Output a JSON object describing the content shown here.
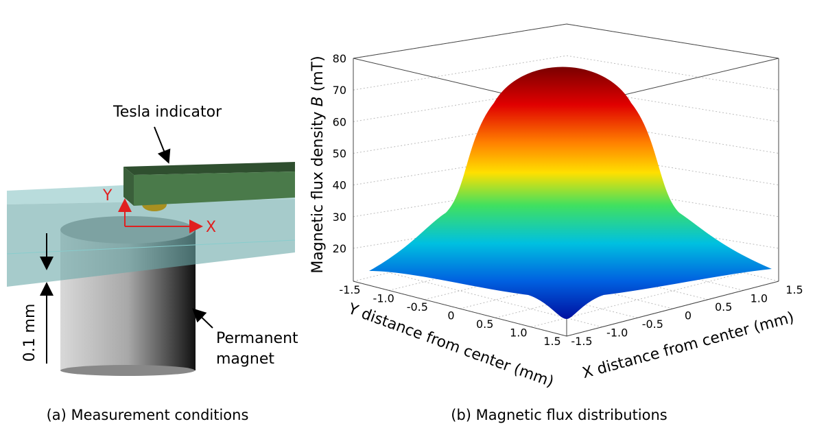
{
  "panel_a": {
    "labels": {
      "tesla_indicator": "Tesla indicator",
      "y_axis": "Y",
      "x_axis": "X",
      "permanent_magnet": [
        "Permanent",
        "magnet"
      ],
      "gap": "0.1 mm"
    },
    "caption": "(a) Measurement conditions"
  },
  "panel_b": {
    "z_title": {
      "text": "Magnetic flux density ",
      "symbol": "B",
      "unit": " (mT)"
    },
    "zticks": [
      20,
      30,
      40,
      50,
      60,
      70,
      80
    ],
    "yticks": [
      "-1.5",
      "-1.0",
      "-0.5",
      "0",
      "0.5",
      "1.0",
      "1.5"
    ],
    "xticks": [
      "-1.5",
      "-1.0",
      "-0.5",
      "0",
      "0.5",
      "1.0",
      "1.5"
    ],
    "y_title": "Y distance from center (mm)",
    "x_title": "X distance from center (mm)",
    "caption": "(b) Magnetic flux distributions"
  }
}
